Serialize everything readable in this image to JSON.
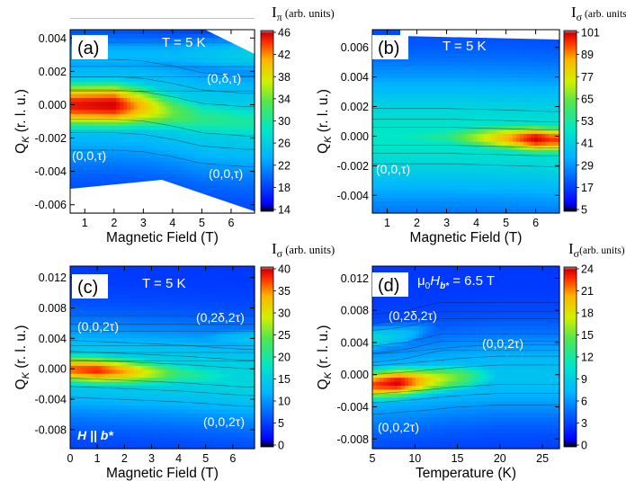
{
  "chart_data": [
    {
      "type": "heatmap",
      "panel_label": "(a)",
      "condition": "T = 5 K",
      "xlabel": "Magnetic Field (T)",
      "ylabel_main": "Q",
      "ylabel_sub": "K",
      "ylabel_tail": " (r. l. u.)",
      "xlim": [
        0.5,
        6.8
      ],
      "ylim": [
        -0.0065,
        0.0045
      ],
      "x_ticks": [
        "1",
        "2",
        "3",
        "4",
        "5",
        "6"
      ],
      "x_tick_values": [
        1,
        2,
        3,
        4,
        5,
        6
      ],
      "y_ticks": [
        "0.004",
        "0.002",
        "0.000",
        "-0.002",
        "-0.004",
        "-0.006"
      ],
      "y_tick_values": [
        0.004,
        0.002,
        0.0,
        -0.002,
        -0.004,
        -0.006
      ],
      "colorbar_title_main": "I",
      "colorbar_title_sub": "π",
      "colorbar_title_tail": " (arb. units)",
      "colorbar_ticks": [
        "46",
        "42",
        "38",
        "34",
        "30",
        "26",
        "22",
        "18",
        "14"
      ],
      "colorbar_range": [
        14,
        46
      ],
      "annotations": [
        "(0,δ,τ)",
        "(0,0,τ)",
        "(0,0,τ)"
      ],
      "ridges": [
        {
          "label": "(0,0,τ)",
          "center_q": [
            [
              0.5,
              0.0
            ],
            [
              2.0,
              0.0
            ],
            [
              3.0,
              -0.0001
            ],
            [
              4.0,
              -0.0004
            ],
            [
              5.0,
              -0.0008
            ],
            [
              6.5,
              -0.001
            ]
          ],
          "peak_intensity": [
            [
              0.5,
              45
            ],
            [
              2.0,
              46
            ],
            [
              3.0,
              40
            ],
            [
              4.0,
              34
            ],
            [
              5.0,
              31
            ],
            [
              6.5,
              30
            ]
          ]
        },
        {
          "label": "(0,δ,τ)",
          "center_q": [
            [
              4.0,
              0.003
            ],
            [
              6.5,
              0.003
            ]
          ],
          "peak_intensity": [
            [
              4.0,
              24
            ],
            [
              6.5,
              26
            ]
          ]
        }
      ]
    },
    {
      "type": "heatmap",
      "panel_label": "(b)",
      "condition": "T = 5 K",
      "xlabel": "Magnetic Field (T)",
      "ylabel_main": "Q",
      "ylabel_sub": "K",
      "ylabel_tail": " (r. l. u.)",
      "xlim": [
        0.5,
        6.8
      ],
      "ylim": [
        -0.0052,
        0.0072
      ],
      "x_ticks": [
        "1",
        "2",
        "3",
        "4",
        "5",
        "6"
      ],
      "x_tick_values": [
        1,
        2,
        3,
        4,
        5,
        6
      ],
      "y_ticks": [
        "0.006",
        "0.004",
        "0.002",
        "0.000",
        "-0.002",
        "-0.004"
      ],
      "y_tick_values": [
        0.006,
        0.004,
        0.002,
        0.0,
        -0.002,
        -0.004
      ],
      "colorbar_title_main": "I",
      "colorbar_title_sub": "σ",
      "colorbar_title_tail": " (arb. units)",
      "colorbar_ticks": [
        "101",
        "89",
        "77",
        "65",
        "53",
        "41",
        "29",
        "17",
        "5"
      ],
      "colorbar_range": [
        5,
        101
      ],
      "annotations": [
        "(0,0,τ)"
      ],
      "ridges": [
        {
          "label": "(0,0,τ)",
          "center_q": [
            [
              0.5,
              0.0
            ],
            [
              3.0,
              0.0
            ],
            [
              5.0,
              -0.0001
            ],
            [
              6.5,
              -0.0002
            ]
          ],
          "peak_intensity": [
            [
              0.5,
              45
            ],
            [
              3.0,
              55
            ],
            [
              5.0,
              85
            ],
            [
              6.0,
              101
            ],
            [
              6.5,
              95
            ]
          ]
        }
      ]
    },
    {
      "type": "heatmap",
      "panel_label": "(c)",
      "condition": "T = 5 K",
      "field_direction": "H || b*",
      "xlabel": "Magnetic Field (T)",
      "ylabel_main": "Q",
      "ylabel_sub": "K",
      "ylabel_tail": " (r. l. u.)",
      "xlim": [
        0,
        6.8
      ],
      "ylim": [
        -0.0105,
        0.0135
      ],
      "x_ticks": [
        "0",
        "1",
        "2",
        "3",
        "4",
        "5",
        "6"
      ],
      "x_tick_values": [
        0,
        1,
        2,
        3,
        4,
        5,
        6
      ],
      "y_ticks": [
        "0.012",
        "0.008",
        "0.004",
        "0.000",
        "-0.004",
        "-0.008"
      ],
      "y_tick_values": [
        0.012,
        0.008,
        0.004,
        0.0,
        -0.004,
        -0.008
      ],
      "colorbar_title_main": "I",
      "colorbar_title_sub": "σ",
      "colorbar_title_tail": " (arb. units)",
      "colorbar_ticks": [
        "40",
        "35",
        "30",
        "25",
        "20",
        "15",
        "10",
        "5",
        "0"
      ],
      "colorbar_range": [
        0,
        40
      ],
      "annotations": [
        "(0,0,2τ)",
        "(0,2δ,2τ)",
        "(0,0,2τ)"
      ],
      "ridges": [
        {
          "label": "(0,0,2τ)",
          "center_q": [
            [
              0.0,
              0.0
            ],
            [
              2.0,
              -0.0003
            ],
            [
              4.0,
              -0.0006
            ],
            [
              6.5,
              -0.0012
            ]
          ],
          "peak_intensity": [
            [
              0.0,
              36
            ],
            [
              1.0,
              38
            ],
            [
              2.0,
              34
            ],
            [
              4.0,
              22
            ],
            [
              6.5,
              15
            ]
          ]
        },
        {
          "label": "(0,2δ,2τ)",
          "center_q": [
            [
              4.5,
              0.004
            ],
            [
              6.5,
              0.004
            ]
          ],
          "peak_intensity": [
            [
              4.5,
              10
            ],
            [
              6.5,
              14
            ]
          ]
        }
      ]
    },
    {
      "type": "heatmap",
      "panel_label": "(d)",
      "condition_prefix": "μ",
      "condition_sub0": "0",
      "condition_H": "H",
      "condition_sub_b": "b*",
      "condition_suffix": " = 6.5 T",
      "xlabel": "Temperature (K)",
      "ylabel_main": "Q",
      "ylabel_sub": "K",
      "ylabel_tail": " (r. l. u.)",
      "xlim": [
        5,
        27
      ],
      "ylim": [
        -0.0092,
        0.0135
      ],
      "x_ticks": [
        "5",
        "10",
        "15",
        "20",
        "25"
      ],
      "x_tick_values": [
        5,
        10,
        15,
        20,
        25
      ],
      "y_ticks": [
        "0.012",
        "0.008",
        "0.004",
        "0.000",
        "-0.004",
        "-0.008"
      ],
      "y_tick_values": [
        0.012,
        0.008,
        0.004,
        0.0,
        -0.004,
        -0.008
      ],
      "colorbar_title_main": "I",
      "colorbar_title_sub": "σ",
      "colorbar_title_tail": "(arb. units)",
      "colorbar_ticks": [
        "24",
        "21",
        "18",
        "15",
        "12",
        "9",
        "6",
        "3",
        "0"
      ],
      "colorbar_range": [
        0,
        24
      ],
      "annotations": [
        "(0,2δ,2τ)",
        "(0,0,2τ)",
        "(0,0,2τ)"
      ],
      "ridges": [
        {
          "label": "(0,0,2τ)",
          "center_q": [
            [
              5,
              -0.0012
            ],
            [
              10,
              -0.0008
            ],
            [
              15,
              -0.0003
            ],
            [
              20,
              0.0
            ],
            [
              25,
              0.0
            ]
          ],
          "peak_intensity": [
            [
              5,
              22
            ],
            [
              8,
              24
            ],
            [
              12,
              18
            ],
            [
              16,
              14
            ],
            [
              20,
              8
            ],
            [
              25,
              3
            ]
          ]
        },
        {
          "label": "(0,2δ,2τ)",
          "center_q": [
            [
              5,
              0.0045
            ],
            [
              9,
              0.005
            ],
            [
              13,
              0.006
            ]
          ],
          "peak_intensity": [
            [
              5,
              10
            ],
            [
              9,
              8
            ],
            [
              13,
              4
            ]
          ]
        }
      ]
    }
  ]
}
